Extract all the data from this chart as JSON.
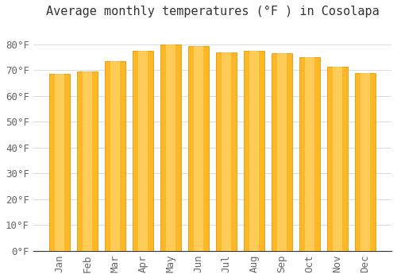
{
  "title": "Average monthly temperatures (°F ) in Cosolapa",
  "months": [
    "Jan",
    "Feb",
    "Mar",
    "Apr",
    "May",
    "Jun",
    "Jul",
    "Aug",
    "Sep",
    "Oct",
    "Nov",
    "Dec"
  ],
  "values": [
    68.5,
    69.5,
    73.5,
    77.5,
    80.0,
    79.5,
    77.0,
    77.5,
    76.5,
    75.0,
    71.5,
    69.0
  ],
  "bar_color_face": "#FDB827",
  "bar_color_edge": "#E8960A",
  "bar_color_light": "#FFDD80",
  "background_color": "#FFFFFF",
  "grid_color": "#DDDDDD",
  "ylim": [
    0,
    88
  ],
  "yticks": [
    0,
    10,
    20,
    30,
    40,
    50,
    60,
    70,
    80
  ],
  "ylabel_suffix": "°F",
  "title_fontsize": 11,
  "tick_fontsize": 9,
  "font_family": "monospace"
}
